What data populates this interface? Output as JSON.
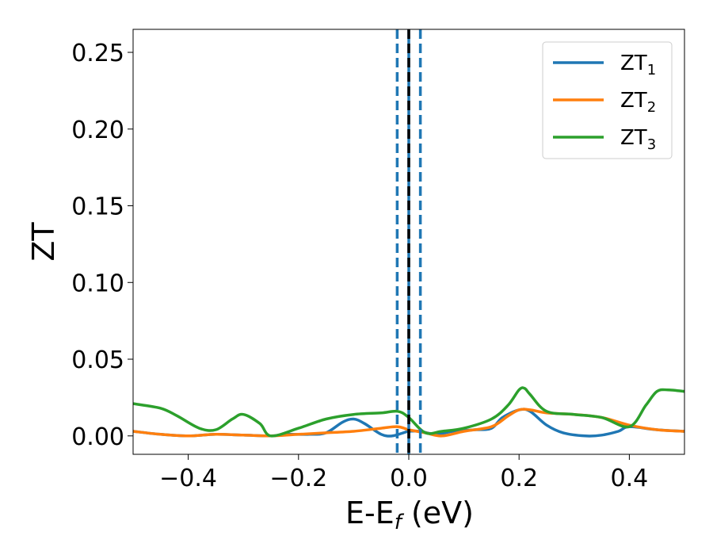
{
  "chart_data": {
    "type": "line",
    "xlabel": {
      "base": "E-E",
      "sub": "f",
      "unit": " (eV)"
    },
    "ylabel": "ZT",
    "xlim": [
      -0.5,
      0.5
    ],
    "ylim": [
      -0.012,
      0.265
    ],
    "x_ticks": [
      -0.4,
      -0.2,
      0.0,
      0.2,
      0.4
    ],
    "x_tick_labels": [
      "−0.4",
      "−0.2",
      "0.0",
      "0.2",
      "0.4"
    ],
    "y_ticks": [
      0.0,
      0.05,
      0.1,
      0.15,
      0.2,
      0.25
    ],
    "y_tick_labels": [
      "0.00",
      "0.05",
      "0.10",
      "0.15",
      "0.20",
      "0.25"
    ],
    "grid": false,
    "legend_position": "top-right",
    "vertical_lines": [
      {
        "x": -0.021,
        "style": "dashed",
        "color": "#1f77b4"
      },
      {
        "x": 0.021,
        "style": "dashed",
        "color": "#1f77b4"
      },
      {
        "x": 0.0,
        "style": "solid",
        "color": "#1f77b4"
      },
      {
        "x": 0.0,
        "style": "dashed",
        "color": "#000000"
      }
    ],
    "series": [
      {
        "name": "ZT",
        "name_sub": "1",
        "color": "#1f77b4",
        "x": [
          -0.5,
          -0.45,
          -0.4,
          -0.35,
          -0.3,
          -0.25,
          -0.22,
          -0.18,
          -0.15,
          -0.12,
          -0.1,
          -0.08,
          -0.05,
          -0.03,
          -0.01,
          0.0,
          0.02,
          0.05,
          0.08,
          0.12,
          0.15,
          0.17,
          0.2,
          0.22,
          0.25,
          0.28,
          0.32,
          0.35,
          0.38,
          0.4,
          0.45,
          0.5
        ],
        "y": [
          0.003,
          0.001,
          0.0,
          0.001,
          0.0005,
          0.0,
          0.001,
          0.001,
          0.002,
          0.009,
          0.011,
          0.008,
          0.001,
          0.0,
          0.002,
          0.003,
          0.003,
          0.001,
          0.003,
          0.004,
          0.005,
          0.012,
          0.017,
          0.016,
          0.007,
          0.002,
          0.0,
          0.0005,
          0.003,
          0.006,
          0.004,
          0.003
        ]
      },
      {
        "name": "ZT",
        "name_sub": "2",
        "color": "#ff7f0e",
        "x": [
          -0.5,
          -0.45,
          -0.4,
          -0.35,
          -0.3,
          -0.25,
          -0.2,
          -0.15,
          -0.1,
          -0.05,
          -0.02,
          0.0,
          0.03,
          0.06,
          0.1,
          0.15,
          0.18,
          0.2,
          0.22,
          0.25,
          0.3,
          0.35,
          0.4,
          0.45,
          0.5
        ],
        "y": [
          0.003,
          0.001,
          0.0,
          0.001,
          0.0005,
          0.0,
          0.001,
          0.002,
          0.003,
          0.005,
          0.006,
          0.004,
          0.002,
          0.0,
          0.003,
          0.006,
          0.013,
          0.017,
          0.017,
          0.015,
          0.014,
          0.012,
          0.007,
          0.004,
          0.003
        ]
      },
      {
        "name": "ZT",
        "name_sub": "3",
        "color": "#2ca02c",
        "x": [
          -0.5,
          -0.45,
          -0.42,
          -0.38,
          -0.35,
          -0.32,
          -0.3,
          -0.27,
          -0.25,
          -0.2,
          -0.15,
          -0.1,
          -0.05,
          -0.02,
          0.0,
          0.03,
          0.06,
          0.1,
          0.15,
          0.18,
          0.2,
          0.21,
          0.22,
          0.25,
          0.3,
          0.35,
          0.4,
          0.43,
          0.45,
          0.47,
          0.5
        ],
        "y": [
          0.021,
          0.018,
          0.013,
          0.005,
          0.004,
          0.011,
          0.014,
          0.008,
          0.0,
          0.005,
          0.011,
          0.014,
          0.015,
          0.016,
          0.012,
          0.002,
          0.003,
          0.005,
          0.011,
          0.02,
          0.03,
          0.031,
          0.027,
          0.016,
          0.014,
          0.012,
          0.006,
          0.02,
          0.029,
          0.03,
          0.029
        ]
      }
    ]
  }
}
